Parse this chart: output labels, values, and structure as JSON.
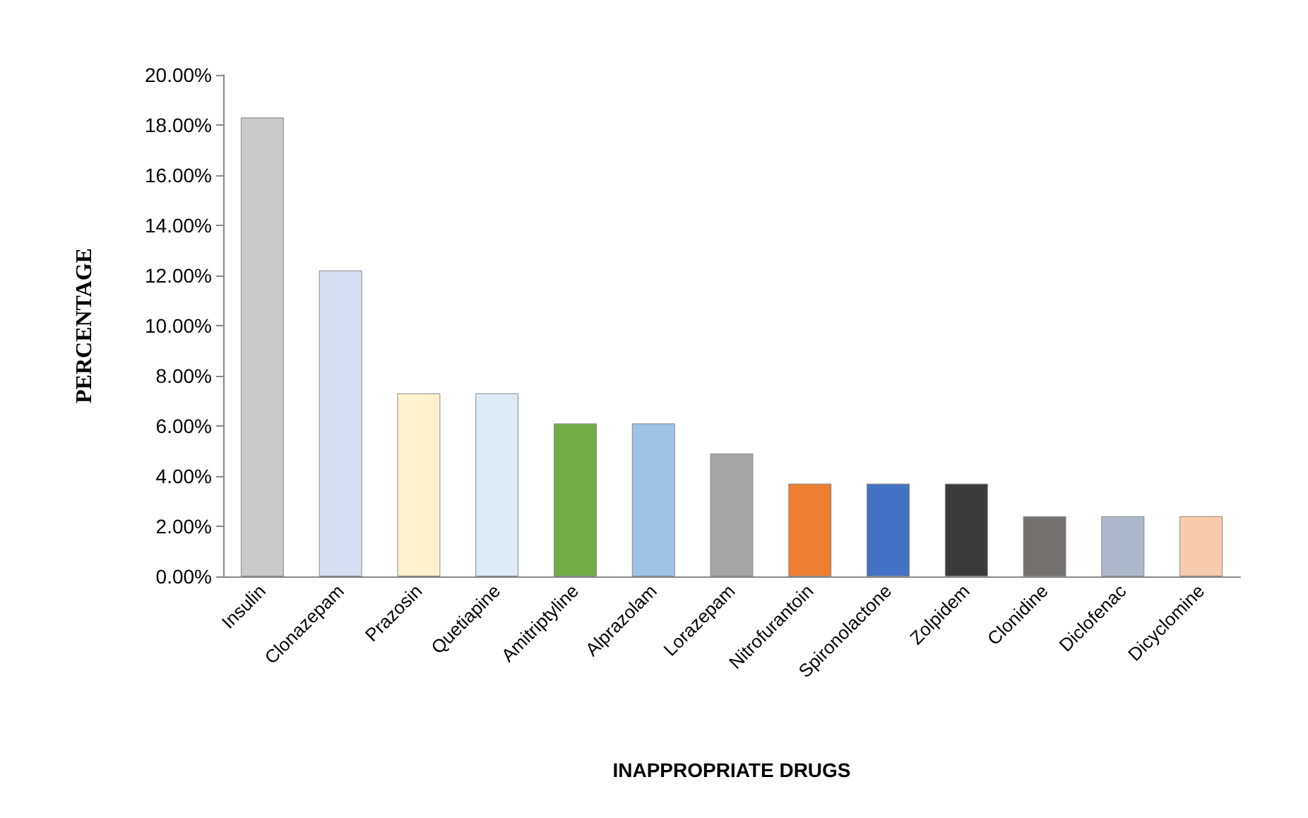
{
  "chart_data": {
    "type": "bar",
    "xlabel": "INAPPROPRIATE DRUGS",
    "ylabel": "PERCENTAGE",
    "categories": [
      "Insulin",
      "Clonazepam",
      "Prazosin",
      "Quetiapine",
      "Amitriptyline",
      "Alprazolam",
      "Lorazepam",
      "Nitrofurantoin",
      "Spironolactone",
      "Zolpidem",
      "Clonidine",
      "Diclofenac",
      "Dicyclomine"
    ],
    "values": [
      18.3,
      12.2,
      7.3,
      7.3,
      6.1,
      6.1,
      4.9,
      3.7,
      3.7,
      3.7,
      2.4,
      2.4,
      2.4
    ],
    "colors": [
      "#c9c9c9",
      "#d6dff2",
      "#fff2cc",
      "#deebf7",
      "#70ad47",
      "#9dc3e6",
      "#a5a5a5",
      "#ed7d31",
      "#4472c4",
      "#3b3b3b",
      "#767171",
      "#adb9ca",
      "#f8cbad"
    ],
    "ylim": [
      0,
      20
    ],
    "yticks": [
      {
        "value": 0,
        "label": "0.00%"
      },
      {
        "value": 2,
        "label": "2.00%"
      },
      {
        "value": 4,
        "label": "4.00%"
      },
      {
        "value": 6,
        "label": "6.00%"
      },
      {
        "value": 8,
        "label": "8.00%"
      },
      {
        "value": 10,
        "label": "10.00%"
      },
      {
        "value": 12,
        "label": "12.00%"
      },
      {
        "value": 14,
        "label": "14.00%"
      },
      {
        "value": 16,
        "label": "16.00%"
      },
      {
        "value": 18,
        "label": "18.00%"
      },
      {
        "value": 20,
        "label": "20.00%"
      }
    ],
    "grid": false
  }
}
